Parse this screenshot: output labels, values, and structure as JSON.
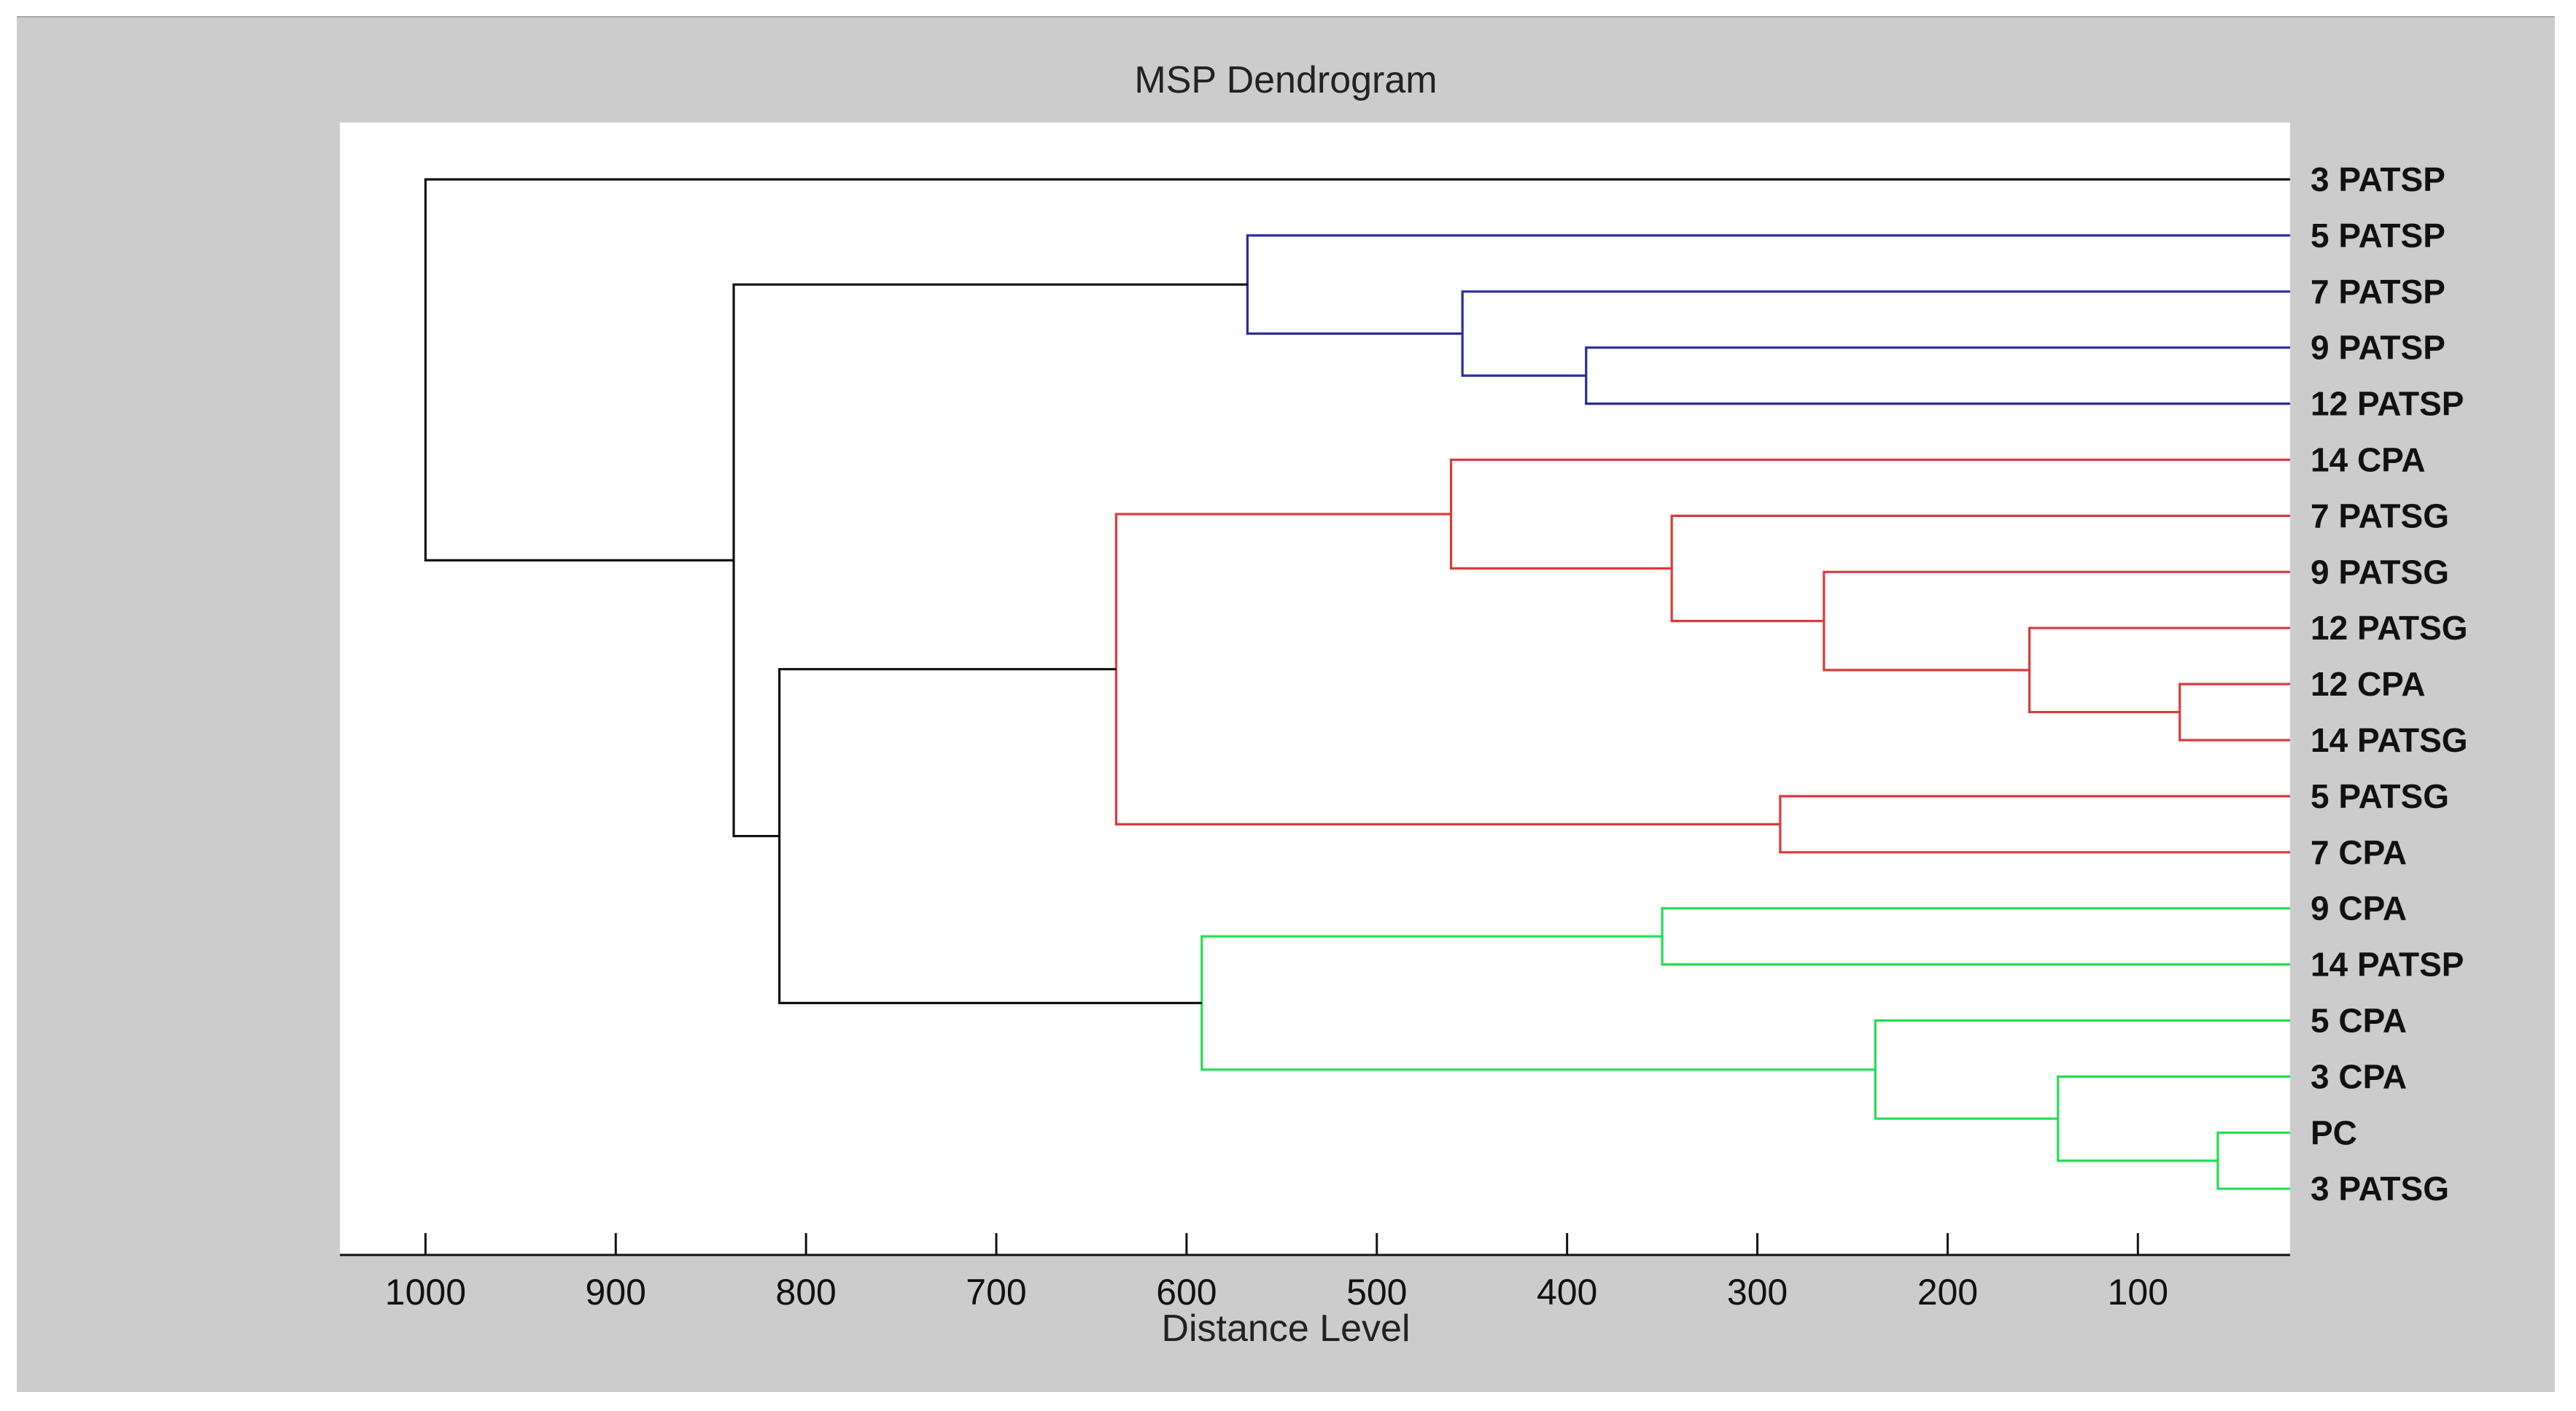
{
  "chart_data": {
    "type": "dendrogram",
    "title": "MSP Dendrogram",
    "xlabel": "Distance Level",
    "xlim": [
      1045,
      20
    ],
    "xticks": [
      1000,
      900,
      800,
      700,
      600,
      500,
      400,
      300,
      200,
      100
    ],
    "leaves": [
      "3 PATSP",
      "5 PATSP",
      "7 PATSP",
      "9 PATSP",
      "12 PATSP",
      "14 CPA",
      "7 PATSG",
      "9 PATSG",
      "12 PATSG",
      "12 CPA",
      "14 PATSG",
      "5 PATSG",
      "7 CPA",
      "9 CPA",
      "14 PATSP",
      "5 CPA",
      "3 CPA",
      "PC",
      "3 PATSG"
    ],
    "colors": {
      "black": "#111111",
      "blue": "#2b2b9e",
      "red": "#dd3a3a",
      "green": "#22dd55"
    },
    "merges": [
      {
        "id": "b1",
        "children": [
          "9 PATSP",
          "12 PATSP"
        ],
        "distance": 390,
        "color": "blue"
      },
      {
        "id": "b2",
        "children": [
          "7 PATSP",
          "b1"
        ],
        "distance": 455,
        "color": "blue"
      },
      {
        "id": "b3",
        "children": [
          "5 PATSP",
          "b2"
        ],
        "distance": 568,
        "color": "blue"
      },
      {
        "id": "r1",
        "children": [
          "12 CPA",
          "14 PATSG"
        ],
        "distance": 78,
        "color": "red"
      },
      {
        "id": "r2",
        "children": [
          "12 PATSG",
          "r1"
        ],
        "distance": 157,
        "color": "red"
      },
      {
        "id": "r3",
        "children": [
          "9 PATSG",
          "r2"
        ],
        "distance": 265,
        "color": "red"
      },
      {
        "id": "r4",
        "children": [
          "7 PATSG",
          "r3"
        ],
        "distance": 345,
        "color": "red"
      },
      {
        "id": "r5",
        "children": [
          "14 CPA",
          "r4"
        ],
        "distance": 461,
        "color": "red"
      },
      {
        "id": "r6",
        "children": [
          "5 PATSG",
          "7 CPA"
        ],
        "distance": 288,
        "color": "red"
      },
      {
        "id": "r7",
        "children": [
          "r5",
          "r6"
        ],
        "distance": 637,
        "color": "red"
      },
      {
        "id": "g1",
        "children": [
          "9 CPA",
          "14 PATSP"
        ],
        "distance": 350,
        "color": "green"
      },
      {
        "id": "g2",
        "children": [
          "PC",
          "3 PATSG"
        ],
        "distance": 58,
        "color": "green"
      },
      {
        "id": "g3",
        "children": [
          "3 CPA",
          "g2"
        ],
        "distance": 142,
        "color": "green"
      },
      {
        "id": "g4",
        "children": [
          "5 CPA",
          "g3"
        ],
        "distance": 238,
        "color": "green"
      },
      {
        "id": "g5",
        "children": [
          "g1",
          "g4"
        ],
        "distance": 592,
        "color": "green"
      },
      {
        "id": "k1",
        "children": [
          "r7",
          "g5"
        ],
        "distance": 814,
        "color": "black"
      },
      {
        "id": "k2",
        "children": [
          "b3",
          "k1"
        ],
        "distance": 838,
        "color": "black"
      },
      {
        "id": "k3",
        "children": [
          "3 PATSP",
          "k2"
        ],
        "distance": 1000,
        "color": "black"
      }
    ]
  }
}
